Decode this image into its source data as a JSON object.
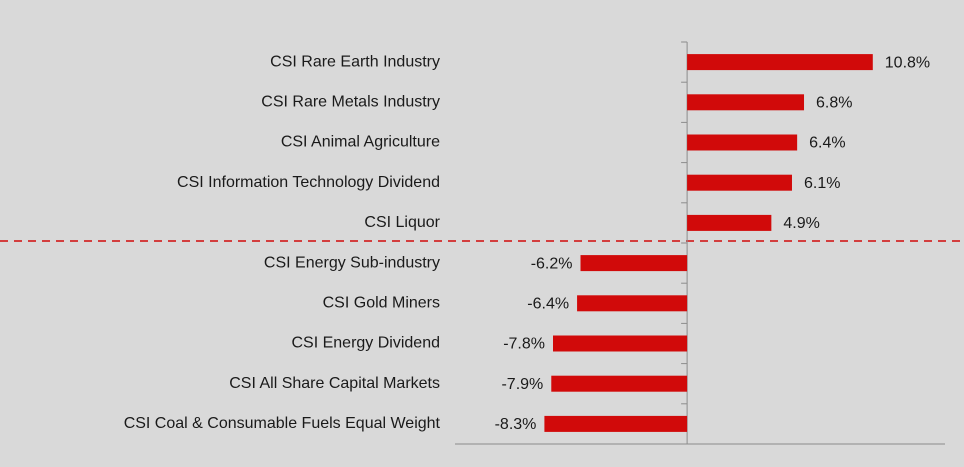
{
  "chart_data": {
    "type": "barh",
    "categories": [
      "CSI Rare Earth Industry",
      "CSI Rare Metals Industry",
      "CSI Animal Agriculture",
      "CSI Information Technology Dividend",
      "CSI Liquor",
      "CSI Energy Sub-industry",
      "CSI Gold Miners",
      "CSI Energy Dividend",
      "CSI All Share Capital Markets",
      "CSI Coal & Consumable Fuels Equal Weight"
    ],
    "values": [
      10.8,
      6.8,
      6.4,
      6.1,
      4.9,
      -6.2,
      -6.4,
      -7.8,
      -7.9,
      -8.3
    ],
    "value_labels": [
      "10.8%",
      "6.8%",
      "6.4%",
      "6.1%",
      "4.9%",
      "-6.2%",
      "-6.4%",
      "-7.8%",
      "-7.9%",
      "-8.3%"
    ],
    "color": "#d10a0a",
    "xlim": [
      -13.5,
      15
    ]
  }
}
